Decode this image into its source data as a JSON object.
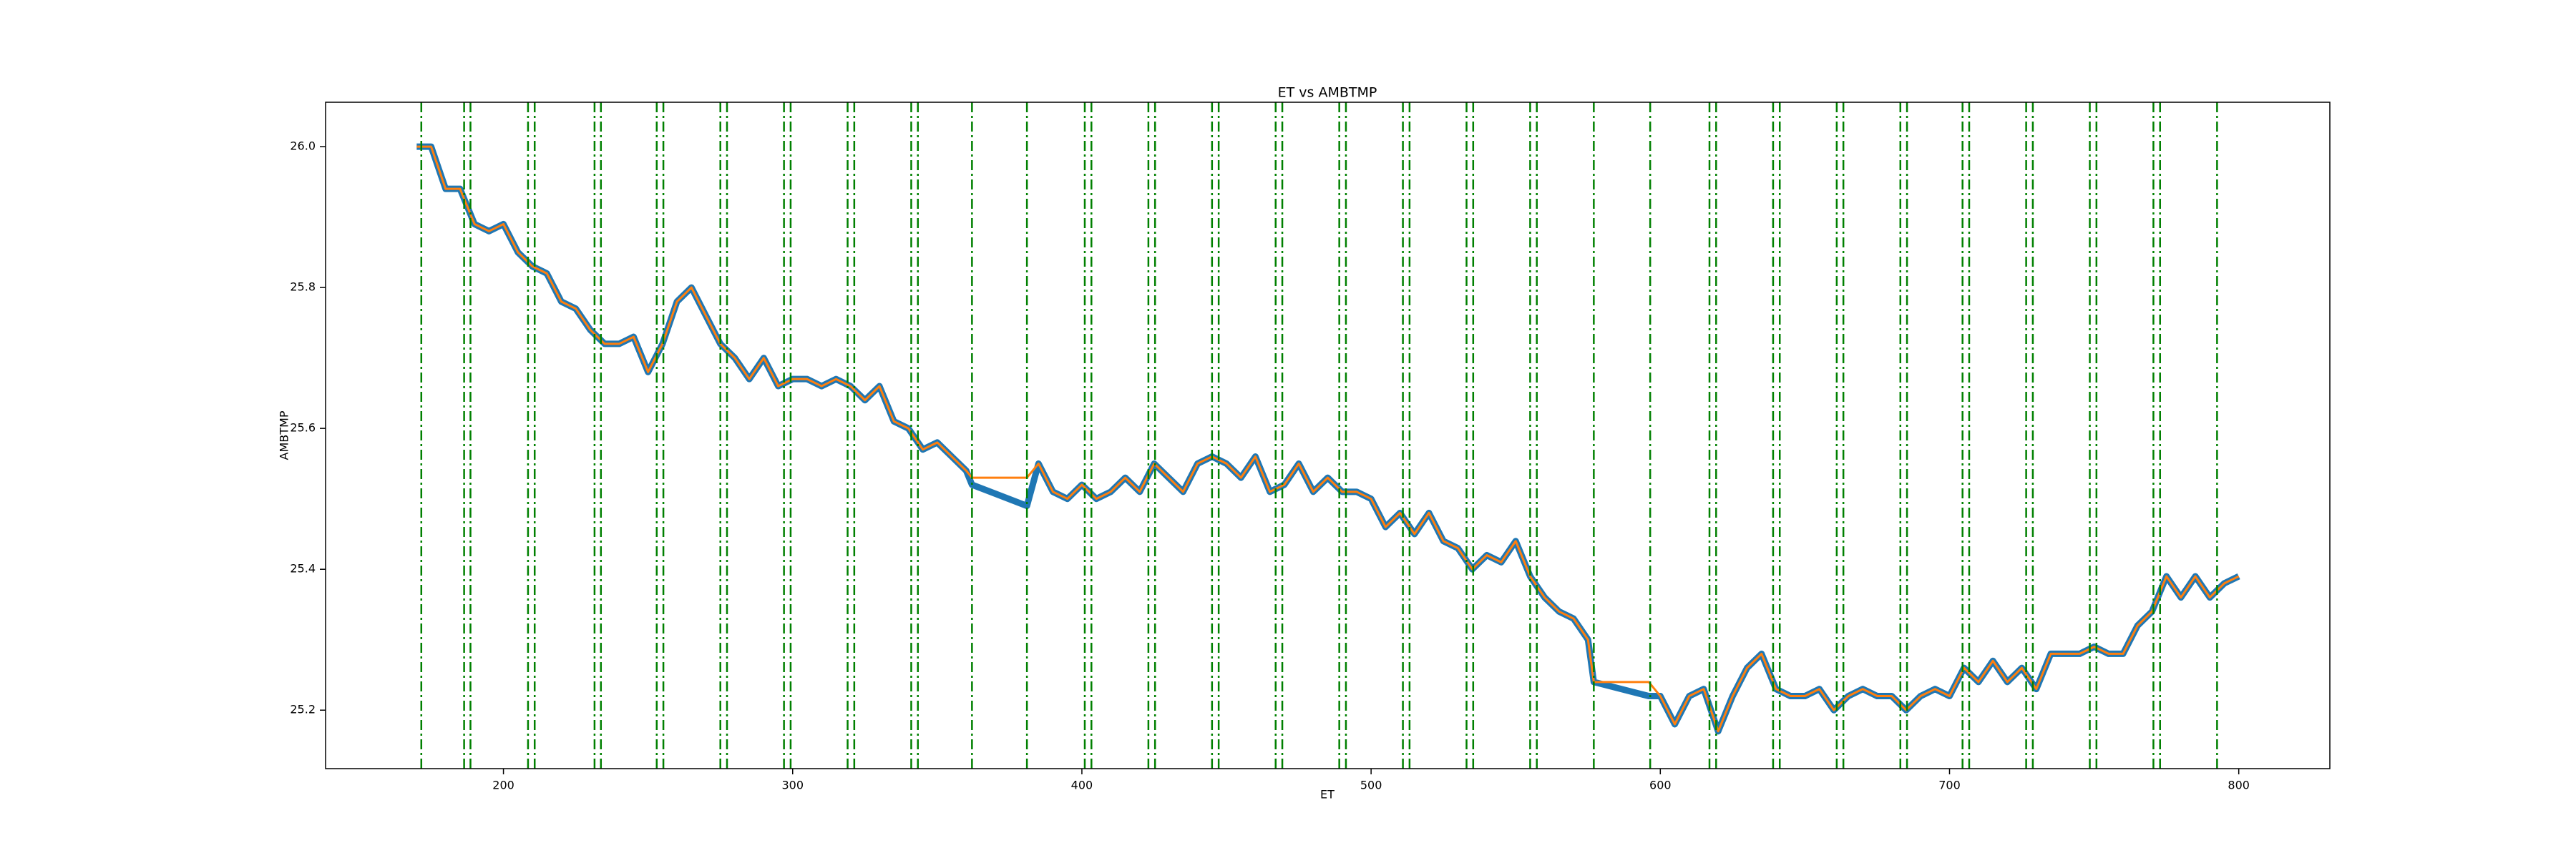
{
  "chart_data": {
    "type": "line",
    "title": "ET vs AMBTMP",
    "xlabel": "ET",
    "ylabel": "AMBTMP",
    "x": [
      170,
      175,
      180,
      185,
      190,
      195,
      200,
      205,
      210,
      215,
      220,
      225,
      230,
      235,
      240,
      245,
      250,
      255,
      260,
      265,
      270,
      275,
      280,
      285,
      290,
      295,
      300,
      305,
      310,
      315,
      320,
      325,
      330,
      335,
      340,
      345,
      350,
      355,
      360,
      362,
      381,
      385,
      390,
      395,
      400,
      405,
      410,
      415,
      420,
      425,
      430,
      435,
      440,
      445,
      450,
      455,
      460,
      465,
      470,
      475,
      480,
      485,
      490,
      495,
      500,
      505,
      510,
      515,
      520,
      525,
      530,
      535,
      540,
      545,
      550,
      555,
      560,
      565,
      570,
      575,
      577,
      596,
      600,
      605,
      610,
      615,
      620,
      625,
      630,
      635,
      640,
      645,
      650,
      655,
      660,
      665,
      670,
      675,
      680,
      685,
      690,
      695,
      700,
      705,
      710,
      715,
      720,
      725,
      730,
      735,
      740,
      745,
      750,
      755,
      760,
      765,
      770,
      775,
      780,
      785,
      790,
      795,
      800
    ],
    "series": [
      {
        "color": "#1f77b4",
        "values": [
          26.0,
          26.0,
          25.94,
          25.94,
          25.89,
          25.88,
          25.89,
          25.85,
          25.83,
          25.82,
          25.78,
          25.77,
          25.74,
          25.72,
          25.72,
          25.73,
          25.68,
          25.72,
          25.78,
          25.8,
          25.76,
          25.72,
          25.7,
          25.67,
          25.7,
          25.66,
          25.67,
          25.67,
          25.66,
          25.67,
          25.66,
          25.64,
          25.66,
          25.61,
          25.6,
          25.57,
          25.58,
          25.56,
          25.54,
          25.52,
          25.49,
          25.55,
          25.51,
          25.5,
          25.52,
          25.5,
          25.51,
          25.53,
          25.51,
          25.55,
          25.53,
          25.51,
          25.55,
          25.56,
          25.55,
          25.53,
          25.56,
          25.51,
          25.52,
          25.55,
          25.51,
          25.53,
          25.51,
          25.51,
          25.5,
          25.46,
          25.48,
          25.45,
          25.48,
          25.44,
          25.43,
          25.4,
          25.42,
          25.41,
          25.44,
          25.39,
          25.36,
          25.34,
          25.33,
          25.3,
          25.24,
          25.22,
          25.22,
          25.18,
          25.22,
          25.23,
          25.17,
          25.22,
          25.26,
          25.28,
          25.23,
          25.22,
          25.22,
          25.23,
          25.2,
          25.22,
          25.23,
          25.22,
          25.22,
          25.2,
          25.22,
          25.23,
          25.22,
          25.26,
          25.24,
          25.27,
          25.24,
          25.26,
          25.23,
          25.28,
          25.28,
          25.28,
          25.29,
          25.28,
          25.28,
          25.32,
          25.34,
          25.39,
          25.36,
          25.39,
          25.36,
          25.38,
          25.39
        ]
      },
      {
        "color": "#ff7f0e",
        "values": [
          26.0,
          26.0,
          25.94,
          25.94,
          25.89,
          25.88,
          25.89,
          25.85,
          25.83,
          25.82,
          25.78,
          25.77,
          25.74,
          25.72,
          25.72,
          25.73,
          25.68,
          25.72,
          25.78,
          25.8,
          25.76,
          25.72,
          25.7,
          25.67,
          25.7,
          25.66,
          25.67,
          25.67,
          25.66,
          25.67,
          25.66,
          25.64,
          25.66,
          25.61,
          25.6,
          25.57,
          25.58,
          25.56,
          25.54,
          25.53,
          25.53,
          25.55,
          25.51,
          25.5,
          25.52,
          25.5,
          25.51,
          25.53,
          25.51,
          25.55,
          25.53,
          25.51,
          25.55,
          25.56,
          25.55,
          25.53,
          25.56,
          25.51,
          25.52,
          25.55,
          25.51,
          25.53,
          25.51,
          25.51,
          25.5,
          25.46,
          25.48,
          25.45,
          25.48,
          25.44,
          25.43,
          25.4,
          25.42,
          25.41,
          25.44,
          25.39,
          25.36,
          25.34,
          25.33,
          25.3,
          25.24,
          25.24,
          25.22,
          25.18,
          25.22,
          25.23,
          25.17,
          25.22,
          25.26,
          25.28,
          25.23,
          25.22,
          25.22,
          25.23,
          25.2,
          25.22,
          25.23,
          25.22,
          25.22,
          25.2,
          25.22,
          25.23,
          25.22,
          25.26,
          25.24,
          25.27,
          25.24,
          25.26,
          25.23,
          25.28,
          25.28,
          25.28,
          25.29,
          25.28,
          25.28,
          25.32,
          25.34,
          25.39,
          25.36,
          25.39,
          25.36,
          25.38,
          25.39
        ]
      }
    ],
    "vlines": [
      171.6,
      186.4,
      188.6,
      208.5,
      210.8,
      231.5,
      233.7,
      253.0,
      255.3,
      275.0,
      277.3,
      297.0,
      299.3,
      319.0,
      321.3,
      341.0,
      343.3,
      362.0,
      381.0,
      401.0,
      403.3,
      423.0,
      425.3,
      445.0,
      447.3,
      467.0,
      469.3,
      489.0,
      491.3,
      511.0,
      513.3,
      533.0,
      535.3,
      555.0,
      557.3,
      577.0,
      596.5,
      617.0,
      619.3,
      639.0,
      641.3,
      661.0,
      663.3,
      683.0,
      685.3,
      704.5,
      706.8,
      726.5,
      728.8,
      748.5,
      750.8,
      770.5,
      772.8,
      792.5
    ],
    "vline_color": "#008000",
    "xlim": [
      138.5,
      831.5
    ],
    "ylim": [
      25.117,
      26.063
    ],
    "xticks": [
      200,
      300,
      400,
      500,
      600,
      700,
      800
    ],
    "yticks": [
      {
        "value": 25.2,
        "label": "25.2"
      },
      {
        "value": 25.4,
        "label": "25.4"
      },
      {
        "value": 25.6,
        "label": "25.6"
      },
      {
        "value": 25.8,
        "label": "25.8"
      },
      {
        "value": 26.0,
        "label": "26.0"
      }
    ]
  }
}
